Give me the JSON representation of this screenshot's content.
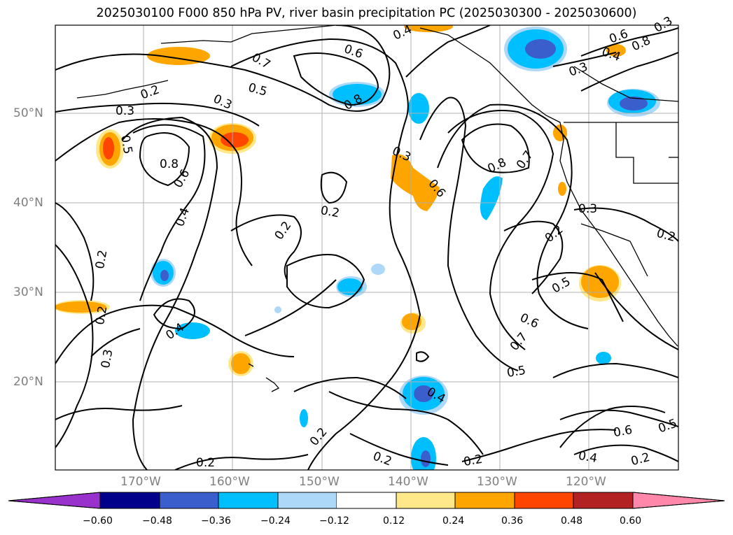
{
  "title": "2025030100 F000 850 hPa PV, river basin precipitation PC (2025030300 - 2025030600)",
  "map": {
    "lat_labels": [
      "50°N",
      "40°N",
      "30°N",
      "20°N"
    ],
    "lon_labels": [
      "170°W",
      "160°W",
      "150°W",
      "140°W",
      "130°W",
      "120°W"
    ],
    "contour_labels": [
      "0.4",
      "0.6",
      "0.7",
      "0.5",
      "0.8",
      "0.3",
      "0.2",
      "0.3",
      "0.8",
      "0.6",
      "0.4",
      "0.2",
      "0.2",
      "0.3",
      "0.6",
      "0.8",
      "0.7",
      "0.3",
      "0.2",
      "0.5",
      "0.6",
      "0.7",
      "0.5",
      "0.4",
      "0.2",
      "0.2",
      "0.2",
      "0.6",
      "0.4",
      "0.5",
      "0.2",
      "0.2",
      "0.3",
      "0.4",
      "0.5",
      "0.6",
      "0.8",
      "0.3",
      "0.2",
      "0.2",
      "0.2",
      "0.3",
      "0.4"
    ],
    "colors": {
      "grid": "#b0b0b0",
      "contour": "#000000",
      "coast": "#000000"
    }
  },
  "colorbar": {
    "tick_labels": [
      "−0.60",
      "−0.48",
      "−0.36",
      "−0.24",
      "−0.12",
      "0.12",
      "0.24",
      "0.36",
      "0.48",
      "0.60"
    ],
    "colors": [
      "#9932cc",
      "#00008b",
      "#3a5fcd",
      "#00bfff",
      "#add8f7",
      "#ffffff",
      "#ffe88a",
      "#ffa500",
      "#ff4500",
      "#b22222",
      "#ff88aa"
    ]
  }
}
